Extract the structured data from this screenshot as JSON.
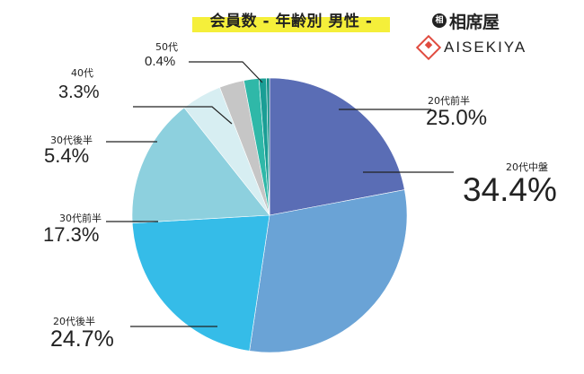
{
  "title": "会員数 - 年齢別 男性 -",
  "logos": {
    "jp": "相席屋",
    "en": "AISEKIYA"
  },
  "colors": {
    "slices": [
      "#5a6db5",
      "#6aa3d6",
      "#35bce8",
      "#8dd0de",
      "#d7eef2",
      "#c6c6c6",
      "#2fb8a8",
      "#1a9e95",
      "#128f86"
    ]
  },
  "chart_data": {
    "type": "pie",
    "title": "会員数 - 年齢別 男性 -",
    "start_angle_deg": 0,
    "direction": "clockwise",
    "slices": [
      {
        "label": "20代前半",
        "value": 25.0,
        "display": "25.0%"
      },
      {
        "label": "20代中盤",
        "value": 34.4,
        "display": "34.4%"
      },
      {
        "label": "20代後半",
        "value": 24.7,
        "display": "24.7%"
      },
      {
        "label": "30代前半",
        "value": 17.3,
        "display": "17.3%"
      },
      {
        "label": "30代後半",
        "value": 5.4,
        "display": "5.4%"
      },
      {
        "label": "40代",
        "value": 3.3,
        "display": "3.3%"
      },
      {
        "label": "",
        "value": 2.0,
        "display": ""
      },
      {
        "label": "",
        "value": 1.0,
        "display": ""
      },
      {
        "label": "50代",
        "value": 0.4,
        "display": "0.4%"
      }
    ]
  }
}
